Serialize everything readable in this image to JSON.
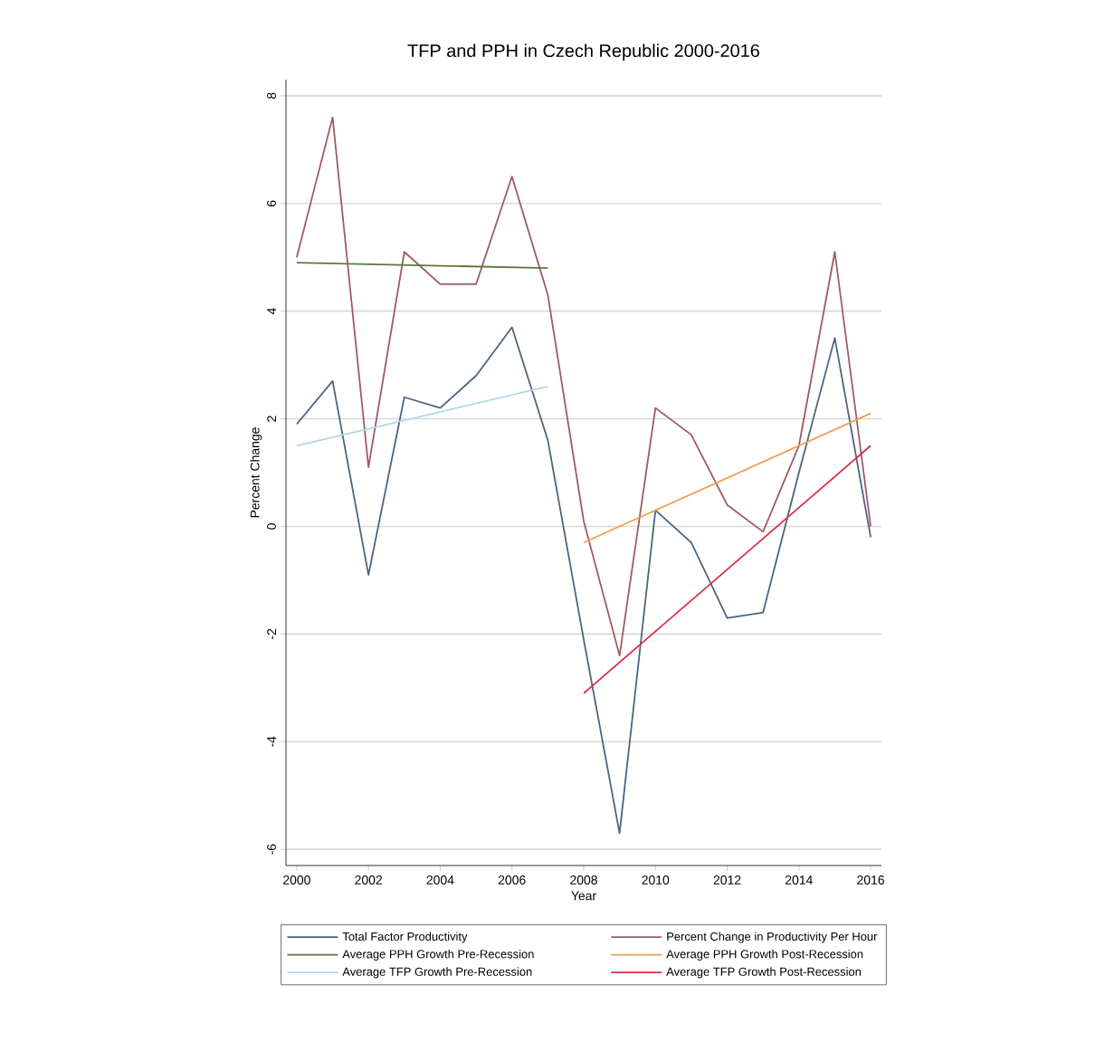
{
  "chart_data": {
    "type": "line",
    "title": "TFP and PPH in Czech Republic 2000-2016",
    "xlabel": "Year",
    "ylabel": "Percent Change",
    "x": [
      2000,
      2001,
      2002,
      2003,
      2004,
      2005,
      2006,
      2007,
      2008,
      2009,
      2010,
      2011,
      2012,
      2013,
      2014,
      2015,
      2016
    ],
    "series": [
      {
        "name": "Total Factor Productivity",
        "color": "#4a6582",
        "values": [
          1.9,
          2.7,
          -0.9,
          2.4,
          2.2,
          2.8,
          3.7,
          1.6,
          -2.1,
          -5.7,
          0.3,
          -0.3,
          -1.7,
          -1.6,
          1.0,
          3.5,
          -0.2
        ]
      },
      {
        "name": "Percent Change in Productivity Per Hour",
        "color": "#a05a62",
        "values": [
          5.0,
          7.6,
          1.1,
          5.1,
          4.5,
          4.5,
          6.5,
          4.3,
          0.1,
          -2.4,
          2.2,
          1.7,
          0.4,
          -0.1,
          1.5,
          5.1,
          0.0
        ]
      },
      {
        "name": "Average PPH Growth Pre-Recession",
        "color": "#5a7a3a",
        "x": [
          2000,
          2007
        ],
        "values": [
          4.9,
          4.8
        ]
      },
      {
        "name": "Average PPH Growth Post-Recession",
        "color": "#f0a050",
        "x": [
          2008,
          2016
        ],
        "values": [
          -0.3,
          2.1
        ]
      },
      {
        "name": "Average TFP Growth Pre-Recession",
        "color": "#add8e6",
        "x": [
          2000,
          2007
        ],
        "values": [
          1.5,
          2.6
        ]
      },
      {
        "name": "Average TFP Growth Post-Recession",
        "color": "#d8304a",
        "x": [
          2008,
          2016
        ],
        "values": [
          -3.1,
          1.5
        ]
      }
    ],
    "xlim": [
      1999.7,
      2016.3
    ],
    "ylim": [
      -6.3,
      8.3
    ],
    "xticks": [
      2000,
      2002,
      2004,
      2006,
      2008,
      2010,
      2012,
      2014,
      2016
    ],
    "yticks": [
      -6,
      -4,
      -2,
      0,
      2,
      4,
      6,
      8
    ],
    "grid": "y",
    "legend": "bottom",
    "marker": "none",
    "line_style": "solid"
  }
}
